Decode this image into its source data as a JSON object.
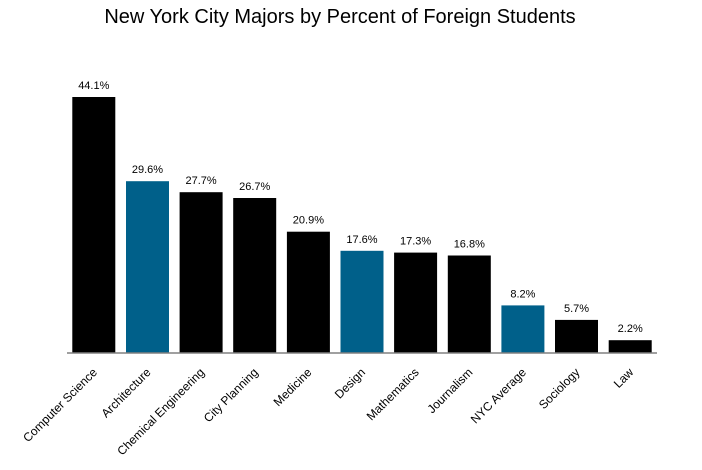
{
  "chart_data": {
    "type": "bar",
    "title": "New York City Majors by Percent of Foreign Students",
    "xlabel": "",
    "ylabel": "",
    "ylim": [
      0,
      46
    ],
    "grid": false,
    "legend": "none",
    "categories": [
      "Computer Science",
      "Architecture",
      "Chemical Engineering",
      "City Planning",
      "Medicine",
      "Design",
      "Mathematics",
      "Journalism",
      "NYC Average",
      "Sociology",
      "Law"
    ],
    "values": [
      44.1,
      29.6,
      27.7,
      26.7,
      20.9,
      17.6,
      17.3,
      16.8,
      8.2,
      5.7,
      2.2
    ],
    "value_labels": [
      "44.1%",
      "29.6%",
      "27.7%",
      "26.7%",
      "20.9%",
      "17.6%",
      "17.3%",
      "16.8%",
      "8.2%",
      "5.7%",
      "2.2%"
    ],
    "highlighted": [
      "Architecture",
      "Design",
      "NYC Average"
    ],
    "colors": {
      "default": "#000000",
      "highlight": "#00608a",
      "axis": "#808080"
    }
  }
}
